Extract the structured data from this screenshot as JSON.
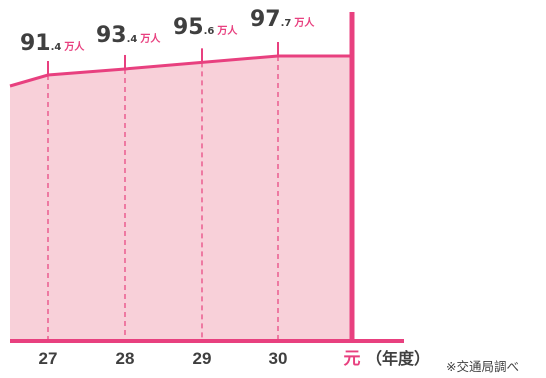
{
  "chart_data": {
    "type": "area",
    "categories": [
      "27",
      "28",
      "29",
      "30",
      "元"
    ],
    "values": [
      91.4,
      93.4,
      95.6,
      97.7,
      97.7
    ],
    "labels": [
      {
        "int": "91",
        "dec": ".4",
        "unit": "万人"
      },
      {
        "int": "93",
        "dec": ".4",
        "unit": "万人"
      },
      {
        "int": "95",
        "dec": ".6",
        "unit": "万人"
      },
      {
        "int": "97",
        "dec": ".7",
        "unit": "万人"
      }
    ],
    "xlabel_suffix": "（年度）",
    "source_note": "※交通局調べ",
    "colors": {
      "accent": "#e8407f",
      "fill": "#f8d0d9",
      "text": "#3f3f3f"
    }
  }
}
